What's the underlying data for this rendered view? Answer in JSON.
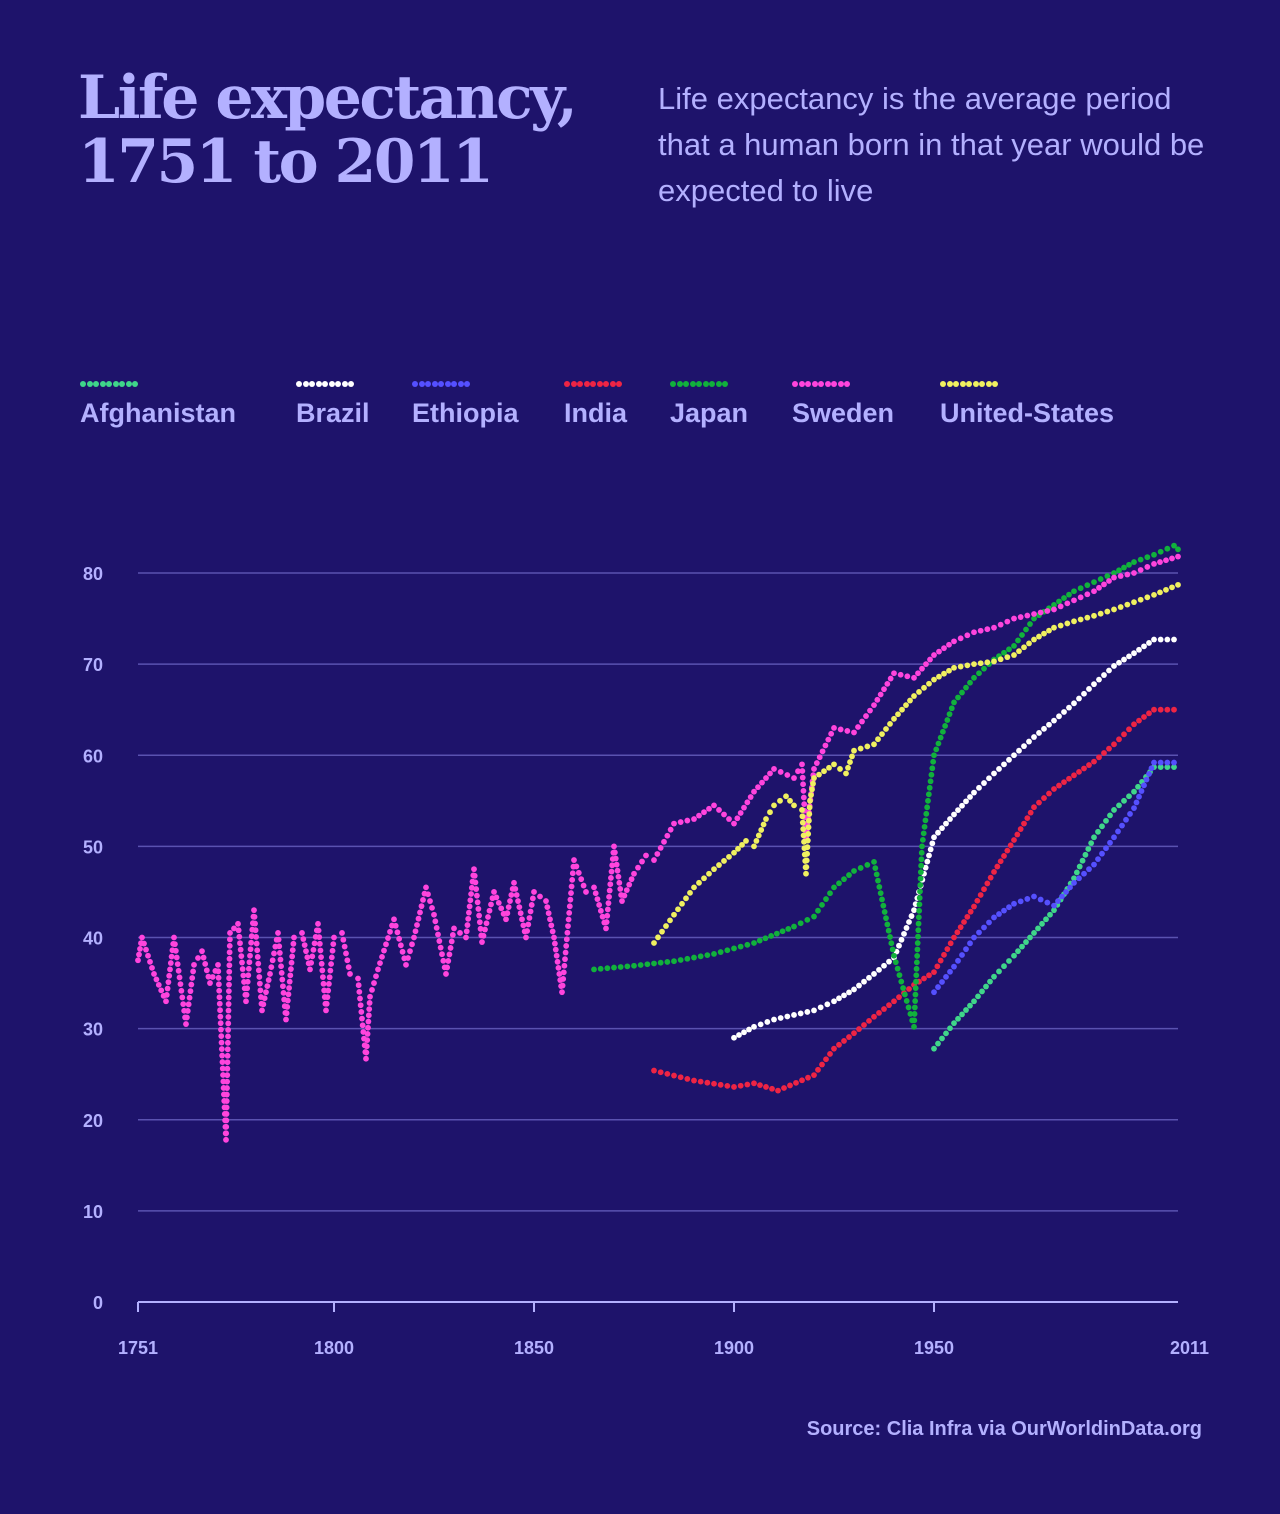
{
  "header": {
    "title_line1": "Life expectancy,",
    "title_line2": "1751 to 2011",
    "subtitle": "Life expectancy is the average period that a human born in that year would be expected to live"
  },
  "source": "Source: Clia Infra via OurWorldinData.org",
  "colors": {
    "background": "#1e136b",
    "text": "#b3b0ff",
    "grid": "#5a52b0",
    "axis": "#b3b0ff"
  },
  "chart_data": {
    "type": "line",
    "style": "dotted",
    "title": "Life expectancy, 1751 to 2011",
    "xlabel": "",
    "ylabel": "",
    "xlim": [
      1751,
      2011
    ],
    "ylim": [
      0,
      85
    ],
    "x_ticks": [
      "1751",
      "1800",
      "1850",
      "1900",
      "1950",
      "2011"
    ],
    "x_tick_values": [
      1751,
      1800,
      1850,
      1900,
      1950,
      2011
    ],
    "y_ticks": [
      "0",
      "10",
      "20",
      "30",
      "40",
      "50",
      "60",
      "70",
      "80"
    ],
    "y_tick_values": [
      0,
      10,
      20,
      30,
      40,
      50,
      60,
      70,
      80
    ],
    "grid": "horizontal",
    "legend_position": "top",
    "series": [
      {
        "name": "Afghanistan",
        "color": "#3fd68a",
        "x": [
          1950,
          1955,
          1960,
          1965,
          1970,
          1975,
          1980,
          1985,
          1990,
          1995,
          2000,
          2005,
          2010
        ],
        "y": [
          27.8,
          30.6,
          33.0,
          35.7,
          38.0,
          40.5,
          43.0,
          46.5,
          51.0,
          54.0,
          56.0,
          58.7,
          58.7
        ]
      },
      {
        "name": "Brazil",
        "color": "#ffffff",
        "x": [
          1900,
          1905,
          1910,
          1915,
          1920,
          1925,
          1930,
          1935,
          1940,
          1945,
          1950,
          1955,
          1960,
          1965,
          1970,
          1975,
          1980,
          1985,
          1990,
          1995,
          2000,
          2005,
          2010
        ],
        "y": [
          29.0,
          30.2,
          31.0,
          31.5,
          32.0,
          33.0,
          34.3,
          36.0,
          37.8,
          43.0,
          51.0,
          53.5,
          55.9,
          58.0,
          60.0,
          62.0,
          63.8,
          65.7,
          67.8,
          69.8,
          71.2,
          72.7,
          72.7
        ]
      },
      {
        "name": "Ethiopia",
        "color": "#5550ff",
        "x": [
          1950,
          1955,
          1960,
          1965,
          1970,
          1975,
          1980,
          1985,
          1990,
          1995,
          2000,
          2005,
          2010
        ],
        "y": [
          34.0,
          36.8,
          40.0,
          42.2,
          43.7,
          44.5,
          43.5,
          46.0,
          48.0,
          51.0,
          54.2,
          59.2,
          59.2
        ]
      },
      {
        "name": "India",
        "color": "#ee2444",
        "x": [
          1880,
          1890,
          1900,
          1905,
          1911,
          1920,
          1925,
          1930,
          1935,
          1940,
          1945,
          1950,
          1955,
          1960,
          1965,
          1970,
          1975,
          1980,
          1985,
          1990,
          1995,
          2000,
          2005,
          2010
        ],
        "y": [
          25.4,
          24.3,
          23.6,
          24.0,
          23.2,
          24.9,
          27.8,
          29.5,
          31.3,
          33.0,
          34.8,
          36.2,
          40.0,
          43.4,
          47.2,
          50.7,
          54.3,
          56.3,
          57.8,
          59.3,
          61.2,
          63.4,
          65.0,
          65.0
        ]
      },
      {
        "name": "Japan",
        "color": "#11b13c",
        "x": [
          1865,
          1875,
          1885,
          1895,
          1905,
          1915,
          1920,
          1925,
          1930,
          1935,
          1940,
          1945,
          1947,
          1950,
          1955,
          1960,
          1965,
          1970,
          1975,
          1980,
          1985,
          1990,
          1995,
          2000,
          2005,
          2010,
          2011
        ],
        "y": [
          36.5,
          36.9,
          37.4,
          38.2,
          39.4,
          41.2,
          42.3,
          45.5,
          47.3,
          48.3,
          38.0,
          30.2,
          50.0,
          60.0,
          65.8,
          68.5,
          70.5,
          72.0,
          75.0,
          76.5,
          78.0,
          79.0,
          80.0,
          81.2,
          82.0,
          83.0,
          82.6
        ]
      },
      {
        "name": "Sweden",
        "color": "#ff44dd",
        "x": [
          1751,
          1752,
          1755,
          1758,
          1760,
          1763,
          1765,
          1767,
          1769,
          1771,
          1773,
          1774,
          1776,
          1778,
          1780,
          1782,
          1784,
          1786,
          1788,
          1790,
          1792,
          1794,
          1796,
          1798,
          1800,
          1802,
          1804,
          1806,
          1808,
          1809,
          1811,
          1815,
          1818,
          1820,
          1823,
          1825,
          1828,
          1830,
          1833,
          1835,
          1837,
          1840,
          1843,
          1845,
          1848,
          1850,
          1853,
          1855,
          1857,
          1860,
          1863,
          1865,
          1868,
          1870,
          1872,
          1875,
          1878,
          1880,
          1885,
          1890,
          1895,
          1900,
          1905,
          1910,
          1915,
          1917,
          1918,
          1920,
          1925,
          1930,
          1935,
          1940,
          1945,
          1950,
          1955,
          1960,
          1965,
          1970,
          1975,
          1980,
          1985,
          1990,
          1995,
          2000,
          2005,
          2011
        ],
        "y": [
          37.5,
          40.0,
          36.0,
          33.0,
          40.0,
          30.5,
          37.0,
          38.5,
          35.0,
          37.0,
          17.8,
          40.5,
          41.5,
          33.0,
          43.0,
          32.0,
          36.0,
          40.5,
          31.0,
          40.0,
          40.5,
          36.5,
          41.5,
          32.0,
          40.0,
          40.5,
          36.0,
          35.5,
          26.7,
          33.5,
          36.5,
          42.0,
          37.0,
          40.0,
          45.5,
          42.5,
          36.0,
          41.0,
          40.0,
          47.5,
          39.5,
          45.0,
          42.0,
          46.0,
          40.0,
          45.0,
          44.0,
          40.0,
          34.0,
          48.5,
          45.0,
          45.5,
          41.0,
          50.0,
          44.0,
          47.0,
          49.0,
          48.5,
          52.5,
          53.0,
          54.5,
          52.5,
          56.0,
          58.5,
          57.5,
          59.0,
          51.0,
          58.5,
          63.0,
          62.5,
          65.5,
          69.0,
          68.5,
          71.0,
          72.5,
          73.5,
          74.0,
          75.0,
          75.5,
          76.0,
          77.0,
          78.0,
          79.5,
          80.0,
          81.0,
          81.8
        ]
      },
      {
        "name": "United-States",
        "color": "#f0f060",
        "x": [
          1880,
          1885,
          1890,
          1895,
          1900,
          1903,
          1905,
          1908,
          1910,
          1913,
          1915,
          1917,
          1918,
          1919,
          1920,
          1925,
          1928,
          1930,
          1935,
          1940,
          1945,
          1950,
          1955,
          1960,
          1965,
          1970,
          1975,
          1980,
          1985,
          1990,
          1995,
          2000,
          2005,
          2011
        ],
        "y": [
          39.4,
          42.5,
          45.5,
          47.5,
          49.3,
          50.6,
          50.0,
          53.0,
          54.5,
          55.5,
          54.5,
          54.0,
          47.0,
          55.0,
          57.5,
          59.0,
          58.0,
          60.5,
          61.2,
          64.0,
          66.5,
          68.3,
          69.6,
          70.0,
          70.3,
          71.0,
          72.7,
          74.0,
          74.7,
          75.3,
          76.0,
          76.8,
          77.6,
          78.7
        ]
      }
    ]
  }
}
